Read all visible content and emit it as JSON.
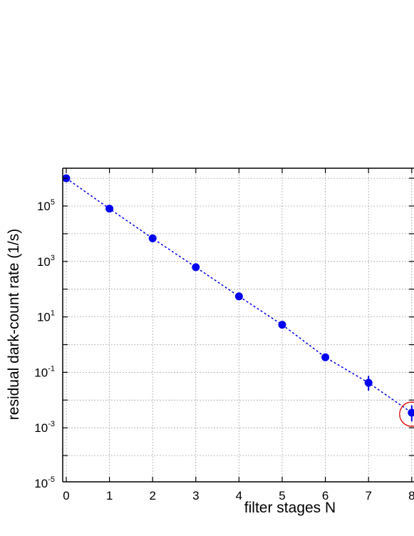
{
  "chart_data": {
    "type": "scatter",
    "xlabel": "filter stages N",
    "ylabel": "residual dark-count rate (1/s)",
    "xlim": [
      -0.1,
      8.0
    ],
    "ylim": [
      1e-05,
      2000000.0
    ],
    "yscale": "log",
    "grid": true,
    "x_ticks": [
      "0",
      "1",
      "2",
      "3",
      "4",
      "5",
      "6",
      "7",
      "8"
    ],
    "y_ticks": [
      {
        "base": "10",
        "exp": "5",
        "value": 100000
      },
      {
        "base": "10",
        "exp": "3",
        "value": 1000
      },
      {
        "base": "10",
        "exp": "1",
        "value": 10
      },
      {
        "base": "10",
        "exp": "-1",
        "value": 0.1
      },
      {
        "base": "10",
        "exp": "-3",
        "value": 0.001
      },
      {
        "base": "10",
        "exp": "-5",
        "value": 1e-05
      }
    ],
    "series": [
      {
        "marker_color": "#0000ee",
        "line_style": "dotted",
        "x": [
          0,
          1,
          2,
          3,
          4,
          5,
          6,
          7,
          8
        ],
        "y": [
          1000000,
          80000,
          6800,
          620,
          55,
          5.2,
          0.35,
          0.042,
          0.0035
        ],
        "error_low": [
          null,
          null,
          null,
          null,
          null,
          null,
          null,
          0.022,
          0.0017
        ],
        "error_high": [
          null,
          null,
          null,
          null,
          null,
          null,
          null,
          0.075,
          0.0065
        ]
      }
    ],
    "highlight": {
      "x": 8,
      "y": 0.0031,
      "color": "#e00000",
      "shape": "circle"
    }
  }
}
